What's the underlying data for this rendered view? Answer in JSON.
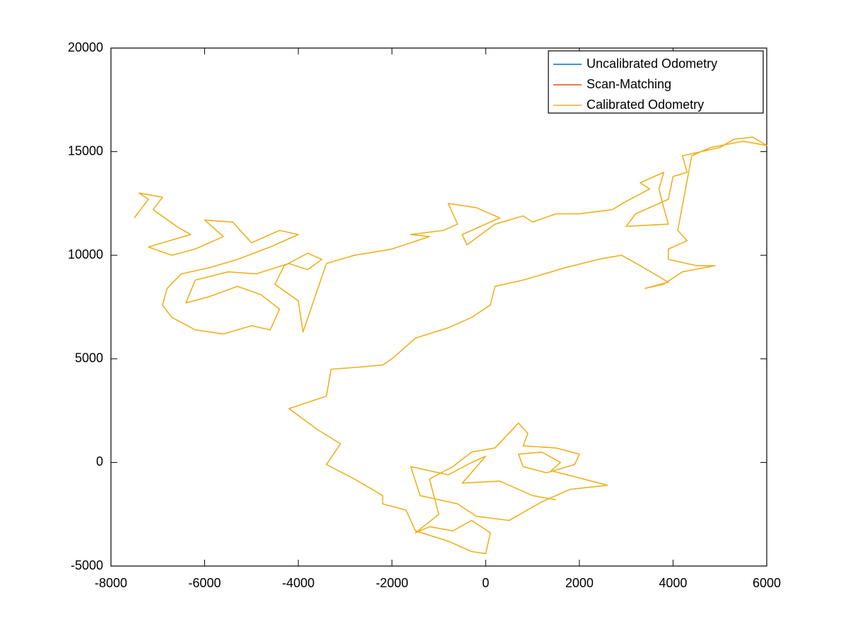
{
  "chart_data": {
    "type": "line",
    "xlim": [
      -8000,
      6000
    ],
    "xticks": [
      -8000,
      -6000,
      -4000,
      -2000,
      0,
      2000,
      4000,
      6000
    ],
    "ylim": [
      -5000,
      20000
    ],
    "yticks": [
      -5000,
      0,
      5000,
      10000,
      15000,
      20000
    ],
    "legend": "northeast",
    "series": [
      {
        "name": "Uncalibrated Odometry",
        "color": "#0072bd",
        "x": [],
        "values": []
      },
      {
        "name": "Scan-Matching",
        "color": "#d95319",
        "x": [],
        "values": []
      },
      {
        "name": "Calibrated Odometry",
        "color": "#edb120",
        "x": [
          -7500,
          -7200,
          -7400,
          -6900,
          -7100,
          -6600,
          -6300,
          -6900,
          -7200,
          -6700,
          -6200,
          -5600,
          -6000,
          -5400,
          -5000,
          -4400,
          -4000,
          -4600,
          -5300,
          -5900,
          -6500,
          -6800,
          -6900,
          -6700,
          -6200,
          -5600,
          -5000,
          -4600,
          -4400,
          -4800,
          -5300,
          -5900,
          -6400,
          -6200,
          -5500,
          -4900,
          -4200,
          -3800,
          -3500,
          -3800,
          -4300,
          -4500,
          -4000,
          -3900,
          -3400,
          -2800,
          -2000,
          -1200,
          -1600,
          -900,
          -600,
          -800,
          -200,
          300,
          -500,
          -400,
          200,
          800,
          1000,
          1500,
          2000,
          2700,
          3000,
          3500,
          3300,
          3800,
          3700,
          3800,
          3900,
          3000,
          3200,
          3900,
          4000,
          4300,
          4200,
          4600,
          5000,
          5300,
          5700,
          6000,
          5500,
          4800,
          4400,
          4100,
          4300,
          3900,
          3900,
          4500,
          4900,
          4200,
          3800,
          3400,
          3900,
          3300,
          2900,
          2400,
          1700,
          800,
          200,
          100,
          -300,
          -800,
          -1500,
          -2000,
          -2200,
          -2700,
          -3300,
          -3400,
          -4200,
          -3600,
          -3100,
          -3400,
          -2800,
          -2200,
          -2200,
          -1700,
          -1500,
          -800,
          -300,
          0,
          100,
          -300,
          -700,
          -1200,
          -1500,
          -1000,
          -1200,
          -700,
          -300,
          200,
          700,
          900,
          800,
          1500,
          2000,
          1900,
          1300,
          800,
          700,
          1200,
          1600,
          1400,
          2600,
          1800,
          1200,
          500,
          -200,
          -600,
          -1400,
          -1600,
          -800,
          -300,
          0,
          -500,
          300,
          1000,
          1500
        ],
        "values": [
          11800,
          12700,
          13000,
          12800,
          12200,
          11400,
          11000,
          10600,
          10400,
          10000,
          10300,
          10900,
          11700,
          11600,
          10600,
          11200,
          11000,
          10400,
          9800,
          9400,
          9100,
          8400,
          7600,
          7000,
          6400,
          6200,
          6600,
          6400,
          7400,
          8100,
          8500,
          8000,
          7700,
          8800,
          9200,
          9100,
          9600,
          9300,
          9800,
          10100,
          9500,
          8600,
          7800,
          6300,
          9600,
          10000,
          10300,
          10900,
          11000,
          11200,
          11500,
          12500,
          12300,
          11800,
          11000,
          10500,
          11500,
          11900,
          11600,
          12000,
          12000,
          12200,
          12600,
          13200,
          13500,
          14000,
          13200,
          12300,
          11500,
          11400,
          12000,
          12700,
          13800,
          14000,
          14800,
          15000,
          15200,
          15600,
          15700,
          15300,
          15500,
          15200,
          14800,
          11200,
          10700,
          10300,
          9800,
          9500,
          9500,
          9200,
          8600,
          8400,
          8700,
          9500,
          10000,
          9800,
          9400,
          8800,
          8500,
          7600,
          7000,
          6500,
          6000,
          5000,
          4700,
          4600,
          4500,
          3200,
          2600,
          1600,
          900,
          -100,
          -800,
          -1600,
          -2000,
          -2300,
          -3300,
          -3800,
          -4300,
          -4400,
          -3400,
          -2800,
          -3300,
          -3100,
          -3400,
          -2500,
          -800,
          -200,
          500,
          700,
          1900,
          1400,
          800,
          700,
          400,
          -100,
          -500,
          -200,
          400,
          500,
          0,
          -400,
          -1100,
          -1300,
          -1900,
          -2800,
          -2600,
          -2000,
          -1600,
          -200,
          -600,
          0,
          300,
          -1000,
          -900,
          -1600,
          -1800
        ]
      }
    ]
  }
}
